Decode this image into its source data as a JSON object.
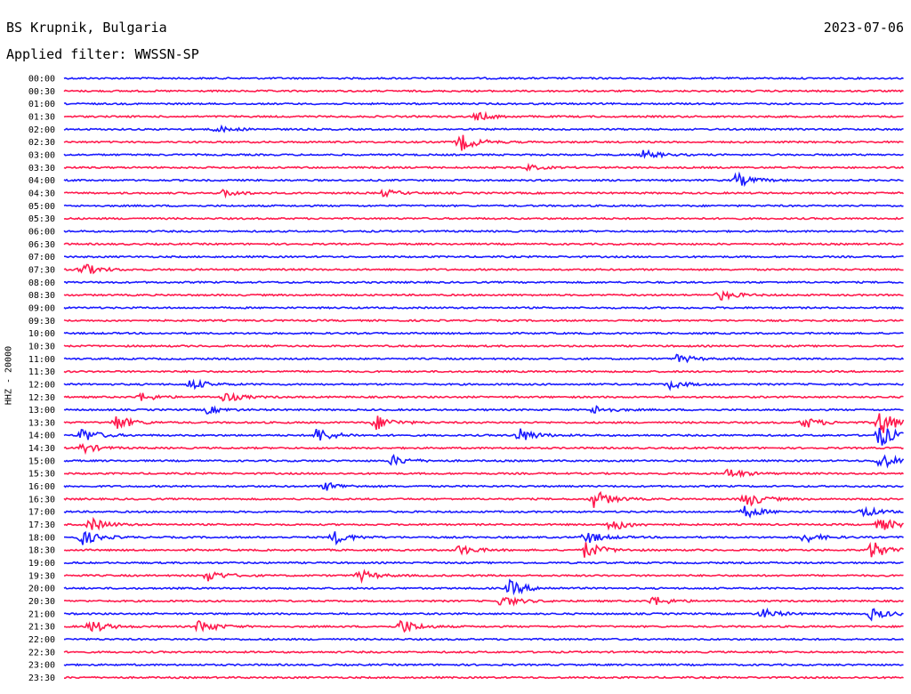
{
  "header": {
    "station": "BS Krupnik, Bulgaria",
    "date": "2023-07-06",
    "filter": "Applied filter: WWSSN-SP"
  },
  "chart_data": {
    "type": "line",
    "ylabel": "HHZ - 20000",
    "colors": {
      "even": "#1a1aff",
      "odd": "#ff1a4d"
    },
    "rows": [
      {
        "label": "00:00",
        "events": []
      },
      {
        "label": "00:30",
        "events": []
      },
      {
        "label": "01:00",
        "events": []
      },
      {
        "label": "01:30",
        "events": [
          [
            0.49,
            5
          ]
        ]
      },
      {
        "label": "02:00",
        "events": [
          [
            0.18,
            4
          ]
        ]
      },
      {
        "label": "02:30",
        "events": [
          [
            0.47,
            11
          ]
        ]
      },
      {
        "label": "03:00",
        "events": [
          [
            0.69,
            5
          ]
        ]
      },
      {
        "label": "03:30",
        "events": [
          [
            0.55,
            3
          ]
        ]
      },
      {
        "label": "04:00",
        "events": [
          [
            0.8,
            8
          ]
        ]
      },
      {
        "label": "04:30",
        "events": [
          [
            0.19,
            4
          ],
          [
            0.38,
            4
          ]
        ]
      },
      {
        "label": "05:00",
        "events": []
      },
      {
        "label": "05:30",
        "events": []
      },
      {
        "label": "06:00",
        "events": []
      },
      {
        "label": "06:30",
        "events": []
      },
      {
        "label": "07:00",
        "events": []
      },
      {
        "label": "07:30",
        "events": [
          [
            0.02,
            8
          ]
        ]
      },
      {
        "label": "08:00",
        "events": []
      },
      {
        "label": "08:30",
        "events": [
          [
            0.78,
            6
          ]
        ]
      },
      {
        "label": "09:00",
        "events": []
      },
      {
        "label": "09:30",
        "events": []
      },
      {
        "label": "10:00",
        "events": []
      },
      {
        "label": "10:30",
        "events": []
      },
      {
        "label": "11:00",
        "events": [
          [
            0.73,
            5
          ]
        ]
      },
      {
        "label": "11:30",
        "events": []
      },
      {
        "label": "12:00",
        "events": [
          [
            0.15,
            6
          ],
          [
            0.72,
            5
          ]
        ]
      },
      {
        "label": "12:30",
        "events": [
          [
            0.09,
            5
          ],
          [
            0.19,
            6
          ]
        ]
      },
      {
        "label": "13:00",
        "events": [
          [
            0.17,
            4
          ],
          [
            0.63,
            5
          ]
        ]
      },
      {
        "label": "13:30",
        "events": [
          [
            0.06,
            9
          ],
          [
            0.37,
            9
          ],
          [
            0.88,
            7
          ],
          [
            0.97,
            16
          ]
        ]
      },
      {
        "label": "14:00",
        "events": [
          [
            0.02,
            9
          ],
          [
            0.3,
            9
          ],
          [
            0.54,
            9
          ],
          [
            0.97,
            14
          ]
        ]
      },
      {
        "label": "14:30",
        "events": [
          [
            0.02,
            6
          ]
        ]
      },
      {
        "label": "15:00",
        "events": [
          [
            0.39,
            6
          ],
          [
            0.97,
            10
          ]
        ]
      },
      {
        "label": "15:30",
        "events": [
          [
            0.79,
            6
          ]
        ]
      },
      {
        "label": "16:00",
        "events": [
          [
            0.31,
            5
          ]
        ]
      },
      {
        "label": "16:30",
        "events": [
          [
            0.63,
            11
          ],
          [
            0.81,
            10
          ]
        ]
      },
      {
        "label": "17:00",
        "events": [
          [
            0.81,
            7
          ],
          [
            0.95,
            6
          ]
        ]
      },
      {
        "label": "17:30",
        "events": [
          [
            0.03,
            8
          ],
          [
            0.65,
            8
          ],
          [
            0.97,
            8
          ]
        ]
      },
      {
        "label": "18:00",
        "events": [
          [
            0.02,
            9
          ],
          [
            0.32,
            8
          ],
          [
            0.62,
            8
          ],
          [
            0.88,
            6
          ]
        ]
      },
      {
        "label": "18:30",
        "events": [
          [
            0.47,
            6
          ],
          [
            0.62,
            10
          ],
          [
            0.96,
            11
          ]
        ]
      },
      {
        "label": "19:00",
        "events": []
      },
      {
        "label": "19:30",
        "events": [
          [
            0.17,
            7
          ],
          [
            0.35,
            7
          ]
        ]
      },
      {
        "label": "20:00",
        "events": [
          [
            0.53,
            9
          ]
        ]
      },
      {
        "label": "20:30",
        "events": [
          [
            0.52,
            7
          ],
          [
            0.7,
            6
          ]
        ]
      },
      {
        "label": "21:00",
        "events": [
          [
            0.83,
            6
          ],
          [
            0.96,
            7
          ]
        ]
      },
      {
        "label": "21:30",
        "events": [
          [
            0.03,
            8
          ],
          [
            0.16,
            8
          ],
          [
            0.4,
            9
          ]
        ]
      },
      {
        "label": "22:00",
        "events": []
      },
      {
        "label": "22:30",
        "events": []
      },
      {
        "label": "23:00",
        "events": []
      },
      {
        "label": "23:30",
        "events": []
      }
    ]
  }
}
